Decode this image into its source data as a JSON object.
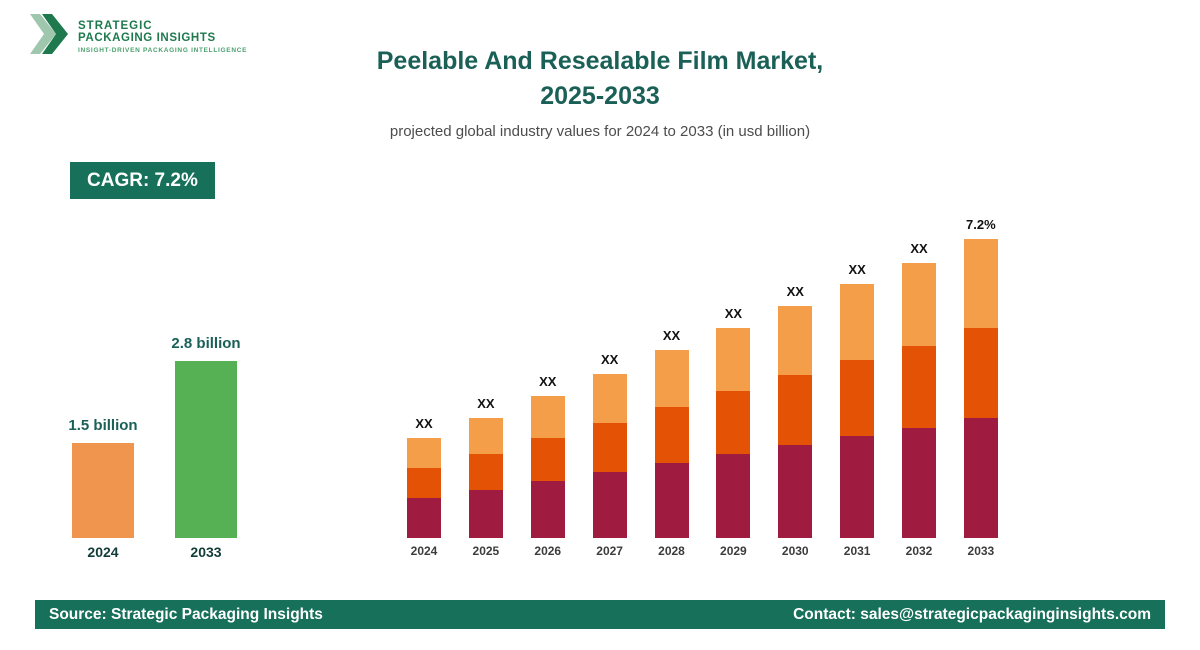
{
  "logo": {
    "line1": "STRATEGIC",
    "line2": "PACKAGING INSIGHTS",
    "tagline": "INSIGHT-DRIVEN PACKAGING INTELLIGENCE"
  },
  "header": {
    "title_line1": "Peelable And Resealable Film Market,",
    "title_line2": "2025-2033",
    "subtitle": "projected global industry values for 2024 to 2033 (in usd billion)"
  },
  "cagr_badge": "CAGR: 7.2%",
  "footer": {
    "source": "Source: Strategic Packaging Insights",
    "contact": "Contact: sales@strategicpackaginginsights.com"
  },
  "colors": {
    "brand_green": "#17705a",
    "title_teal": "#1a6057",
    "mini_orange": "#f0954e",
    "mini_green": "#55b154",
    "stack_bottom": "#a01b40",
    "stack_middle": "#e35205",
    "stack_top": "#f59e49"
  },
  "chart_data": [
    {
      "type": "bar",
      "name": "market-size-comparison",
      "categories": [
        "2024",
        "2033"
      ],
      "values": [
        1.5,
        2.8
      ],
      "value_labels": [
        "1.5 billion",
        "2.8 billion"
      ],
      "bar_colors": [
        "#f0954e",
        "#55b154"
      ],
      "ylabel": "USD billion",
      "legend": "none",
      "grid": false
    },
    {
      "type": "bar",
      "subtype": "stacked",
      "name": "projected-values-2024-2033",
      "categories": [
        "2024",
        "2025",
        "2026",
        "2027",
        "2028",
        "2029",
        "2030",
        "2031",
        "2032",
        "2033"
      ],
      "series": [
        {
          "name": "segment-1",
          "color": "#a01b40",
          "values": [
            40,
            48,
            57,
            66,
            75,
            84,
            93,
            102,
            110,
            120
          ]
        },
        {
          "name": "segment-2",
          "color": "#e35205",
          "values": [
            30,
            36,
            43,
            49,
            56,
            63,
            70,
            76,
            82,
            90
          ]
        },
        {
          "name": "segment-3",
          "color": "#f59e49",
          "values": [
            30,
            36,
            42,
            49,
            57,
            63,
            69,
            76,
            83,
            89
          ]
        }
      ],
      "bar_labels": [
        "XX",
        "XX",
        "XX",
        "XX",
        "XX",
        "XX",
        "XX",
        "XX",
        "XX",
        "7.2%"
      ],
      "values_note": "segment values are unlabeled in source (shown as XX); series values are estimated relative heights",
      "legend": "none",
      "grid": false
    }
  ]
}
